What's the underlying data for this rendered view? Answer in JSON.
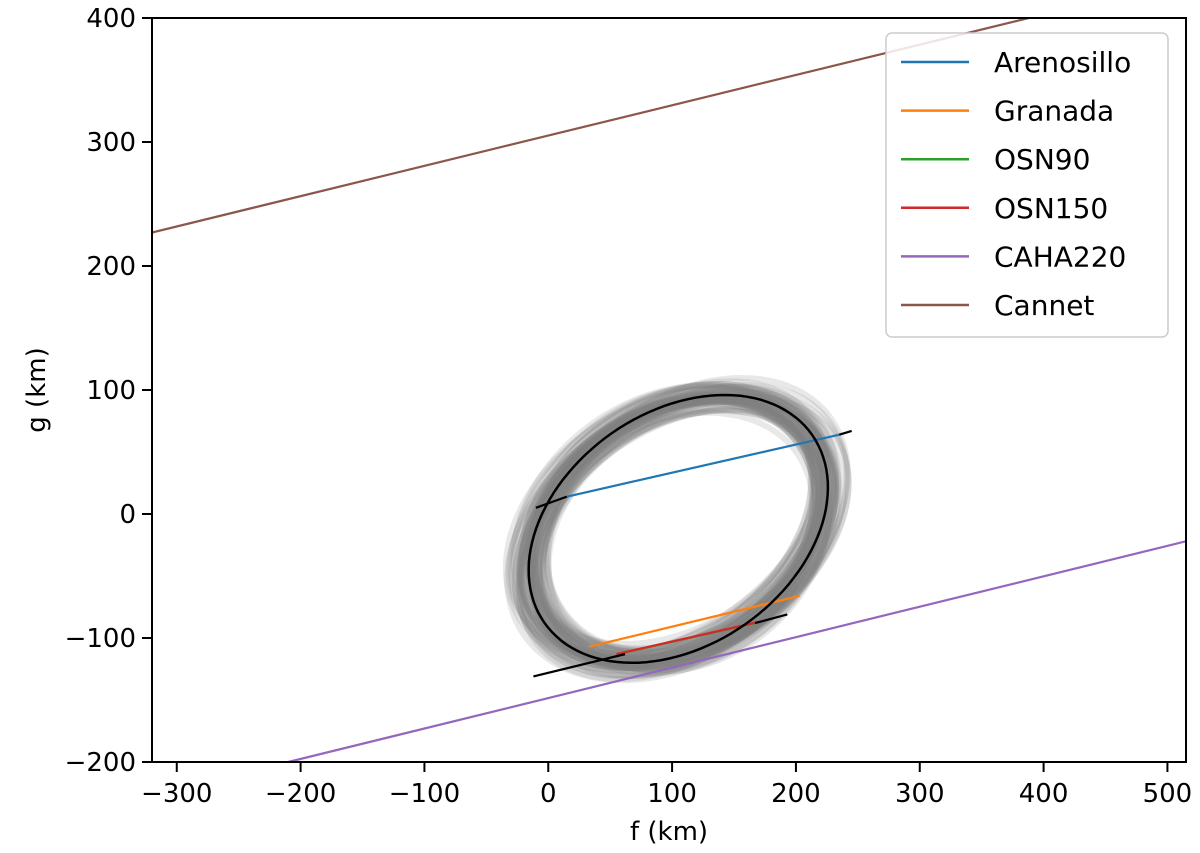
{
  "chart_data": {
    "type": "line",
    "title": "",
    "xlabel": "f (km)",
    "ylabel": "g (km)",
    "xlim": [
      -320,
      515
    ],
    "ylim": [
      -200,
      400
    ],
    "xticks": [
      -300,
      -200,
      -100,
      0,
      100,
      200,
      300,
      400,
      500
    ],
    "yticks": [
      -200,
      -100,
      0,
      100,
      200,
      300,
      400
    ],
    "xtick_labels": [
      "−300",
      "−200",
      "−100",
      "0",
      "100",
      "200",
      "300",
      "400",
      "500"
    ],
    "ytick_labels": [
      "−200",
      "−100",
      "0",
      "100",
      "200",
      "300",
      "400"
    ],
    "grid": false,
    "legend_position": "top-right",
    "series": [
      {
        "name": "Arenosillo",
        "color": "#1f77b4",
        "x": [
          15,
          235
        ],
        "y": [
          14,
          64
        ]
      },
      {
        "name": "Granada",
        "color": "#ff7f0e",
        "x": [
          33,
          203
        ],
        "y": [
          -107,
          -66
        ]
      },
      {
        "name": "OSN90",
        "color": "#2ca02c",
        "x": [
          60,
          167
        ],
        "y": [
          -112,
          -88
        ]
      },
      {
        "name": "OSN150",
        "color": "#d62728",
        "x": [
          55,
          170
        ],
        "y": [
          -113,
          -87
        ]
      },
      {
        "name": "CAHA220",
        "color": "#9467bd",
        "x": [
          -210,
          515
        ],
        "y": [
          -200,
          -22
        ]
      },
      {
        "name": "Cannet",
        "color": "#8c564b",
        "x": [
          -320,
          388
        ],
        "y": [
          227,
          400
        ]
      }
    ],
    "black_segments": [
      {
        "x": [
          -10,
          15
        ],
        "y": [
          5,
          14
        ]
      },
      {
        "x": [
          235,
          245
        ],
        "y": [
          64,
          67
        ]
      },
      {
        "x": [
          -12,
          62
        ],
        "y": [
          -131,
          -113
        ]
      },
      {
        "x": [
          167,
          193
        ],
        "y": [
          -88,
          -81
        ]
      }
    ],
    "ellipse_fit": {
      "center": [
        105,
        -12
      ],
      "semi_major": 132,
      "semi_minor": 94,
      "tilt_deg": 35
    },
    "ellipse_cloud": {
      "color": "#808080"
    }
  }
}
